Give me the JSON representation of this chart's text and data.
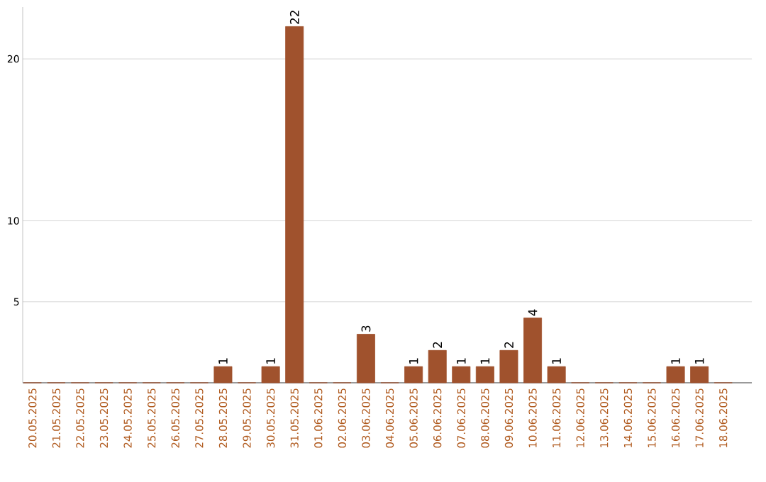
{
  "chart_data": {
    "type": "bar",
    "categories": [
      "20.05.2025",
      "21.05.2025",
      "22.05.2025",
      "23.05.2025",
      "24.05.2025",
      "25.05.2025",
      "26.05.2025",
      "27.05.2025",
      "28.05.2025",
      "29.05.2025",
      "30.05.2025",
      "31.05.2025",
      "01.06.2025",
      "02.06.2025",
      "03.06.2025",
      "04.06.2025",
      "05.06.2025",
      "06.06.2025",
      "07.06.2025",
      "08.06.2025",
      "09.06.2025",
      "10.06.2025",
      "11.06.2025",
      "12.06.2025",
      "13.06.2025",
      "14.06.2025",
      "15.06.2025",
      "16.06.2025",
      "17.06.2025",
      "18.06.2025"
    ],
    "values": [
      0,
      0,
      0,
      0,
      0,
      0,
      0,
      0,
      1,
      0,
      1,
      22,
      0,
      0,
      3,
      0,
      1,
      2,
      1,
      1,
      2,
      4,
      1,
      0,
      0,
      0,
      0,
      1,
      1,
      0
    ],
    "value_labels": [
      null,
      null,
      null,
      null,
      null,
      null,
      null,
      null,
      "1",
      null,
      "1",
      "22",
      null,
      null,
      "3",
      null,
      "1",
      "2",
      "1",
      "1",
      "2",
      "4",
      "1",
      null,
      null,
      null,
      null,
      "1",
      "1",
      null
    ],
    "color": "#a0522d",
    "ylim": [
      0,
      23.2
    ],
    "yticks": [
      5,
      10,
      20
    ],
    "grid": "y"
  }
}
